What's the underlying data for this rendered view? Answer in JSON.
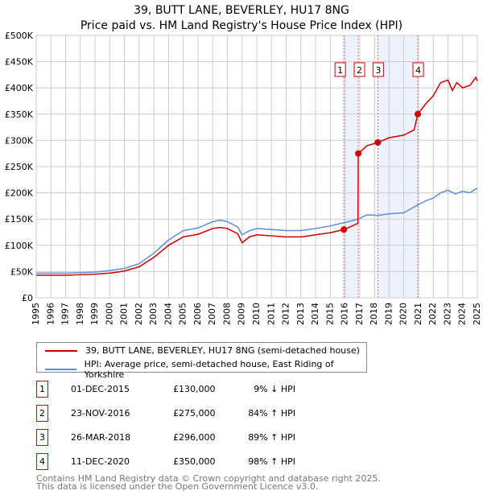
{
  "title_line1": "39, BUTT LANE, BEVERLEY, HU17 8NG",
  "title_line2": "Price paid vs. HM Land Registry's House Price Index (HPI)",
  "chart_data": {
    "type": "line",
    "xlim": [
      1995,
      2025
    ],
    "ylim": [
      0,
      500000
    ],
    "x_ticks": [
      "1995",
      "1996",
      "1997",
      "1998",
      "1999",
      "2000",
      "2001",
      "2002",
      "2003",
      "2004",
      "2005",
      "2006",
      "2007",
      "2008",
      "2009",
      "2010",
      "2011",
      "2012",
      "2013",
      "2014",
      "2015",
      "2016",
      "2017",
      "2018",
      "2019",
      "2020",
      "2021",
      "2022",
      "2023",
      "2024",
      "2025"
    ],
    "y_ticks": [
      {
        "v": 0,
        "label": "£0"
      },
      {
        "v": 50000,
        "label": "£50K"
      },
      {
        "v": 100000,
        "label": "£100K"
      },
      {
        "v": 150000,
        "label": "£150K"
      },
      {
        "v": 200000,
        "label": "£200K"
      },
      {
        "v": 250000,
        "label": "£250K"
      },
      {
        "v": 300000,
        "label": "£300K"
      },
      {
        "v": 350000,
        "label": "£350K"
      },
      {
        "v": 400000,
        "label": "£400K"
      },
      {
        "v": 450000,
        "label": "£450K"
      },
      {
        "v": 500000,
        "label": "£500K"
      }
    ],
    "grid": true,
    "shaded_ranges": [
      [
        2015.92,
        2016.9
      ],
      [
        2018.23,
        2020.95
      ]
    ],
    "series": [
      {
        "name": "39, BUTT LANE, BEVERLEY, HU17 8NG (semi-detached house)",
        "color": "#cc0000",
        "x": [
          1995,
          1996,
          1997,
          1998,
          1999,
          2000,
          2001,
          2002,
          2003,
          2004,
          2005,
          2006,
          2007,
          2007.5,
          2008,
          2008.7,
          2009,
          2009.5,
          2010,
          2011,
          2012,
          2013,
          2014,
          2015,
          2015.92,
          2016.5,
          2016.88,
          2016.9,
          2017.5,
          2018.23,
          2019,
          2020,
          2020.7,
          2020.95,
          2021.5,
          2022,
          2022.5,
          2023,
          2023.3,
          2023.6,
          2024,
          2024.5,
          2024.9,
          2025
        ],
        "y": [
          43000,
          43000,
          43000,
          44000,
          45000,
          47000,
          51000,
          59000,
          77000,
          100000,
          116000,
          121000,
          132000,
          134000,
          132000,
          122000,
          105000,
          116000,
          120000,
          118000,
          116000,
          116000,
          120000,
          124000,
          130000,
          137000,
          142000,
          275000,
          290000,
          296000,
          305000,
          310000,
          320000,
          350000,
          370000,
          385000,
          410000,
          415000,
          395000,
          410000,
          400000,
          405000,
          420000,
          413000
        ]
      },
      {
        "name": "HPI: Average price, semi-detached house, East Riding of Yorkshire",
        "color": "#5b8fd6",
        "x": [
          1995,
          1996,
          1997,
          1998,
          1999,
          2000,
          2001,
          2002,
          2003,
          2004,
          2005,
          2006,
          2007,
          2007.5,
          2008,
          2008.7,
          2009,
          2009.5,
          2010,
          2011,
          2012,
          2013,
          2014,
          2015,
          2015.92,
          2016.9,
          2017.5,
          2018.23,
          2019,
          2020,
          2020.95,
          2021.5,
          2022,
          2022.5,
          2023,
          2023.5,
          2024,
          2024.5,
          2024.9,
          2025
        ],
        "y": [
          47000,
          47000,
          47000,
          48000,
          49000,
          52000,
          56000,
          65000,
          85000,
          110000,
          128000,
          133000,
          145000,
          148000,
          145000,
          135000,
          120000,
          128000,
          132000,
          130000,
          128000,
          128000,
          132000,
          137000,
          143000,
          150000,
          158000,
          157000,
          160000,
          162000,
          177000,
          185000,
          190000,
          200000,
          205000,
          198000,
          203000,
          200000,
          208000,
          207000
        ]
      }
    ],
    "sales": [
      {
        "n": "1",
        "x": 2015.92,
        "y": 130000,
        "date": "01-DEC-2015",
        "price": "£130,000",
        "hpi": "9% ↓ HPI"
      },
      {
        "n": "2",
        "x": 2016.9,
        "y": 275000,
        "date": "23-NOV-2016",
        "price": "£275,000",
        "hpi": "84% ↑ HPI"
      },
      {
        "n": "3",
        "x": 2018.23,
        "y": 296000,
        "date": "26-MAR-2018",
        "price": "£296,000",
        "hpi": "89% ↑ HPI"
      },
      {
        "n": "4",
        "x": 2020.95,
        "y": 350000,
        "date": "11-DEC-2020",
        "price": "£350,000",
        "hpi": "98% ↑ HPI"
      }
    ]
  },
  "footer_line1": "Contains HM Land Registry data © Crown copyright and database right 2025.",
  "footer_line2": "This data is licensed under the Open Government Licence v3.0."
}
